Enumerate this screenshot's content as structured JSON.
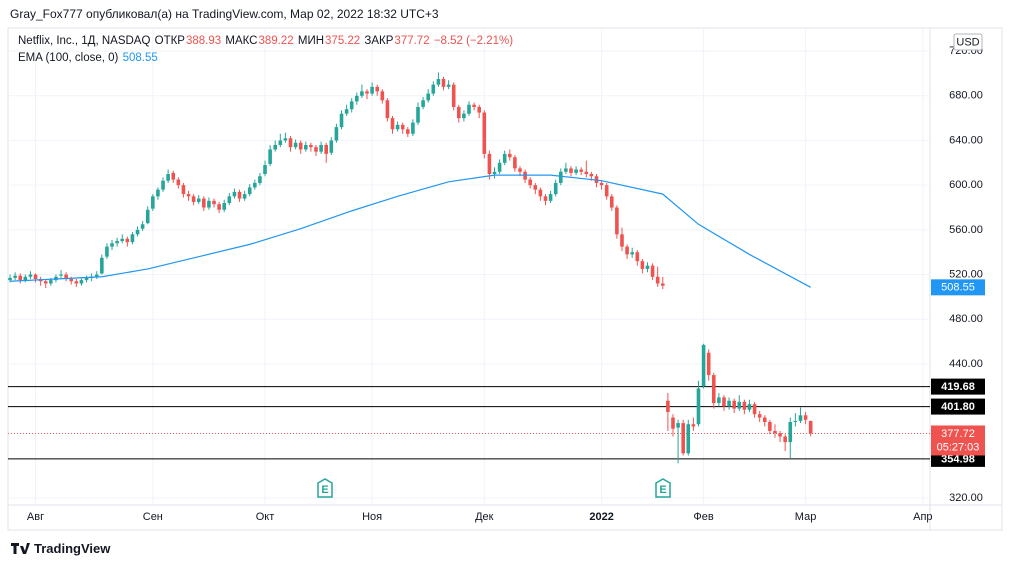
{
  "header": {
    "publisher": "Gray_Fox777 опубликовал(а) на TradingView.com, Мар 02, 2022 18:32 UTC+3"
  },
  "footer": {
    "brand": "TradingView"
  },
  "chart_data": {
    "type": "candlestick",
    "title": "Netflix, Inc., 1Д, NASDAQ",
    "legend": {
      "open_label": "ОТКР",
      "high_label": "МАКС",
      "low_label": "МИН",
      "close_label": "ЗАКР",
      "change_label": "−8.52 (−2.21%)"
    },
    "currency": "USD",
    "countdown": "05:27:03",
    "earnings_marker": "E",
    "ylim": [
      313.7,
      740.7
    ],
    "yticks": [
      {
        "value": 320,
        "label": "320.00"
      },
      {
        "value": 440,
        "label": "440.00"
      },
      {
        "value": 480,
        "label": "480.00"
      },
      {
        "value": 520,
        "label": "520.00"
      },
      {
        "value": 560,
        "label": "560.00"
      },
      {
        "value": 600,
        "label": "600.00"
      },
      {
        "value": 640,
        "label": "640.00"
      },
      {
        "value": 680,
        "label": "680.00"
      },
      {
        "value": 720,
        "label": "720.00"
      }
    ],
    "xlim": [
      -0.4,
      180.4
    ],
    "xticks": [
      {
        "value": 5,
        "label": "Авг"
      },
      {
        "value": 28,
        "label": "Сен"
      },
      {
        "value": 50,
        "label": "Окт"
      },
      {
        "value": 71,
        "label": "Ноя"
      },
      {
        "value": 93,
        "label": "Дек"
      },
      {
        "value": 116,
        "label": "2022"
      },
      {
        "value": 136,
        "label": "Фев"
      },
      {
        "value": 156,
        "label": "Мар"
      },
      {
        "value": 179,
        "label": "Апр"
      }
    ],
    "grid": true,
    "hlines": [
      419.68,
      {
        "value": 401.8,
        "label": "401.80"
      },
      354.98
    ],
    "hline_color": "#000000",
    "last_line_color": "#ef5350",
    "series": [
      {
        "up_color": "#26a69a",
        "down_color": "#ef5350",
        "values": [
          [
            515,
            520,
            513,
            517
          ],
          [
            517,
            522,
            515,
            519
          ],
          [
            519,
            521,
            512,
            515
          ],
          [
            515,
            520,
            513,
            518
          ],
          [
            518,
            523,
            516,
            520
          ],
          [
            520,
            521,
            513,
            516
          ],
          [
            516,
            518,
            510,
            514
          ],
          [
            514,
            516,
            508,
            512
          ],
          [
            512,
            517,
            510,
            515
          ],
          [
            515,
            520,
            513,
            518
          ],
          [
            519,
            524,
            517,
            520
          ],
          [
            520,
            522,
            514,
            516
          ],
          [
            516,
            518,
            511,
            514
          ],
          [
            514,
            516,
            509,
            512
          ],
          [
            512,
            517,
            510,
            515
          ],
          [
            515,
            519,
            513,
            517
          ],
          [
            517,
            521,
            514,
            518
          ],
          [
            518,
            523,
            516,
            520
          ],
          [
            521,
            538,
            520,
            535
          ],
          [
            536,
            548,
            534,
            545
          ],
          [
            545,
            551,
            542,
            548
          ],
          [
            548,
            553,
            545,
            550
          ],
          [
            550,
            556,
            548,
            552
          ],
          [
            552,
            554,
            545,
            549
          ],
          [
            549,
            558,
            547,
            556
          ],
          [
            556,
            563,
            554,
            560
          ],
          [
            561,
            568,
            559,
            565
          ],
          [
            566,
            581,
            565,
            578
          ],
          [
            579,
            592,
            577,
            590
          ],
          [
            590,
            598,
            587,
            596
          ],
          [
            596,
            607,
            594,
            604
          ],
          [
            604,
            614,
            602,
            610
          ],
          [
            611,
            613,
            602,
            605
          ],
          [
            605,
            607,
            597,
            600
          ],
          [
            600,
            602,
            589,
            592
          ],
          [
            592,
            595,
            586,
            590
          ],
          [
            590,
            592,
            582,
            585
          ],
          [
            585,
            591,
            583,
            588
          ],
          [
            588,
            590,
            577,
            580
          ],
          [
            580,
            589,
            578,
            586
          ],
          [
            586,
            588,
            580,
            583
          ],
          [
            583,
            585,
            575,
            578
          ],
          [
            578,
            587,
            576,
            584
          ],
          [
            584,
            593,
            582,
            590
          ],
          [
            590,
            597,
            588,
            594
          ],
          [
            594,
            596,
            585,
            588
          ],
          [
            588,
            595,
            586,
            592
          ],
          [
            592,
            601,
            590,
            598
          ],
          [
            598,
            605,
            596,
            602
          ],
          [
            602,
            611,
            600,
            608
          ],
          [
            610,
            622,
            608,
            618
          ],
          [
            619,
            636,
            617,
            632
          ],
          [
            632,
            640,
            630,
            636
          ],
          [
            636,
            646,
            634,
            640
          ],
          [
            640,
            647,
            638,
            642
          ],
          [
            642,
            644,
            630,
            634
          ],
          [
            634,
            641,
            632,
            638
          ],
          [
            638,
            640,
            628,
            632
          ],
          [
            632,
            639,
            630,
            636
          ],
          [
            636,
            638,
            630,
            634
          ],
          [
            634,
            636,
            626,
            630
          ],
          [
            630,
            639,
            628,
            636
          ],
          [
            636,
            638,
            620,
            628
          ],
          [
            629,
            643,
            627,
            640
          ],
          [
            640,
            655,
            638,
            652
          ],
          [
            652,
            667,
            650,
            664
          ],
          [
            664,
            672,
            662,
            668
          ],
          [
            668,
            678,
            665,
            675
          ],
          [
            675,
            683,
            672,
            680
          ],
          [
            680,
            690,
            678,
            684
          ],
          [
            684,
            686,
            677,
            682
          ],
          [
            682,
            692,
            680,
            688
          ],
          [
            688,
            690,
            680,
            684
          ],
          [
            684,
            686,
            673,
            676
          ],
          [
            676,
            678,
            657,
            660
          ],
          [
            660,
            662,
            646,
            650
          ],
          [
            650,
            657,
            648,
            654
          ],
          [
            654,
            656,
            646,
            650
          ],
          [
            650,
            652,
            643,
            646
          ],
          [
            646,
            659,
            644,
            656
          ],
          [
            656,
            674,
            654,
            670
          ],
          [
            670,
            679,
            668,
            676
          ],
          [
            676,
            686,
            674,
            682
          ],
          [
            682,
            693,
            680,
            690
          ],
          [
            690,
            701,
            688,
            695
          ],
          [
            695,
            697,
            685,
            688
          ],
          [
            688,
            694,
            686,
            690
          ],
          [
            690,
            692,
            667,
            670
          ],
          [
            670,
            672,
            656,
            660
          ],
          [
            660,
            667,
            657,
            664
          ],
          [
            664,
            675,
            662,
            672
          ],
          [
            672,
            674,
            667,
            670
          ],
          [
            670,
            672,
            660,
            665
          ],
          [
            665,
            667,
            624,
            628
          ],
          [
            628,
            631,
            605,
            610
          ],
          [
            610,
            616,
            606,
            612
          ],
          [
            612,
            623,
            610,
            620
          ],
          [
            620,
            631,
            618,
            628
          ],
          [
            628,
            632,
            622,
            625
          ],
          [
            625,
            627,
            612,
            615
          ],
          [
            615,
            617,
            608,
            612
          ],
          [
            612,
            614,
            602,
            605
          ],
          [
            605,
            607,
            597,
            600
          ],
          [
            600,
            602,
            592,
            596
          ],
          [
            596,
            598,
            586,
            590
          ],
          [
            590,
            592,
            582,
            586
          ],
          [
            586,
            595,
            584,
            592
          ],
          [
            592,
            605,
            590,
            602
          ],
          [
            602,
            615,
            600,
            612
          ],
          [
            612,
            620,
            610,
            615
          ],
          [
            615,
            617,
            608,
            611
          ],
          [
            611,
            617,
            609,
            614
          ],
          [
            614,
            616,
            609,
            612
          ],
          [
            612,
            622,
            607,
            610
          ],
          [
            610,
            612,
            604,
            608
          ],
          [
            608,
            610,
            598,
            602
          ],
          [
            602,
            604,
            596,
            600
          ],
          [
            600,
            602,
            587,
            590
          ],
          [
            590,
            592,
            577,
            580
          ],
          [
            580,
            582,
            552,
            556
          ],
          [
            556,
            562,
            541,
            545
          ],
          [
            545,
            547,
            534,
            538
          ],
          [
            538,
            544,
            535,
            540
          ],
          [
            540,
            542,
            528,
            532
          ],
          [
            532,
            534,
            521,
            525
          ],
          [
            525,
            531,
            522,
            528
          ],
          [
            528,
            530,
            515,
            518
          ],
          [
            518,
            527,
            509,
            512
          ],
          [
            512,
            518,
            507,
            510
          ],
          [
            407,
            414,
            380,
            397
          ],
          [
            392,
            395,
            375,
            382
          ],
          [
            383,
            390,
            351,
            387
          ],
          [
            387,
            390,
            358,
            360
          ],
          [
            360,
            390,
            358,
            386
          ],
          [
            386,
            392,
            380,
            384
          ],
          [
            386,
            425,
            384,
            418
          ],
          [
            420,
            458,
            418,
            457
          ],
          [
            450,
            453,
            425,
            430
          ],
          [
            430,
            432,
            400,
            405
          ],
          [
            405,
            414,
            402,
            410
          ],
          [
            410,
            412,
            398,
            402
          ],
          [
            402,
            410,
            399,
            407
          ],
          [
            407,
            409,
            396,
            400
          ],
          [
            400,
            412,
            398,
            406
          ],
          [
            406,
            408,
            395,
            399
          ],
          [
            399,
            408,
            397,
            404
          ],
          [
            404,
            406,
            392,
            395
          ],
          [
            395,
            398,
            388,
            392
          ],
          [
            392,
            394,
            384,
            388
          ],
          [
            388,
            390,
            377,
            380
          ],
          [
            380,
            386,
            374,
            378
          ],
          [
            378,
            380,
            370,
            375
          ],
          [
            375,
            377,
            362,
            370
          ],
          [
            370,
            392,
            355,
            388
          ],
          [
            388,
            396,
            384,
            389
          ],
          [
            389,
            401,
            387,
            394
          ],
          [
            394,
            397,
            386,
            390
          ],
          [
            388.93,
            389.22,
            375.22,
            377.72
          ]
        ]
      },
      {
        "name": "EMA (100, close, 0)",
        "type": "line",
        "color": "#2196f3",
        "x": [
          0,
          18,
          27,
          37,
          47,
          57,
          67,
          76,
          86,
          95,
          106,
          116,
          128,
          135,
          145,
          157
        ],
        "values": [
          514,
          518,
          525,
          536,
          547,
          561,
          577,
          590,
          603,
          609,
          609,
          604,
          592,
          565,
          538,
          508.55
        ]
      }
    ]
  }
}
